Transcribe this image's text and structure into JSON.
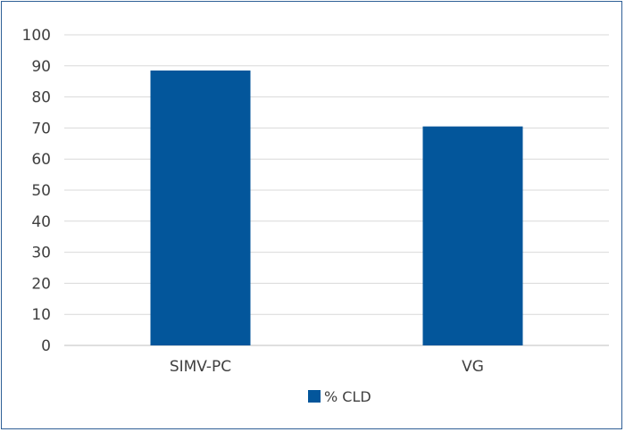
{
  "chart_data": {
    "type": "bar",
    "categories": [
      "SIMV-PC",
      "VG"
    ],
    "series": [
      {
        "name": "% CLD",
        "values": [
          88.5,
          70.5
        ],
        "color": "#03569b"
      }
    ],
    "ylim": [
      0,
      100
    ],
    "yticks": [
      "0",
      "10",
      "20",
      "30",
      "40",
      "50",
      "60",
      "70",
      "80",
      "90",
      "100"
    ],
    "grid": true,
    "legend_position": "bottom"
  }
}
